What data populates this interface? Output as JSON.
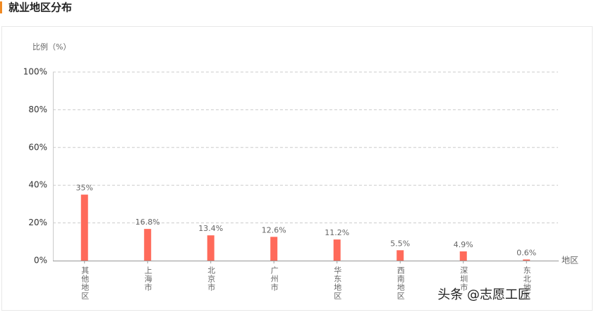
{
  "header": {
    "title": "就业地区分布"
  },
  "chart_data": {
    "type": "bar",
    "y_axis_label": "比例（%）",
    "x_axis_label": "地区",
    "categories": [
      "其他地区",
      "上海市",
      "北京市",
      "广州市",
      "华东地区",
      "西南地区",
      "深圳市",
      "东北地区"
    ],
    "values": [
      35,
      16.8,
      13.4,
      12.6,
      11.2,
      5.5,
      4.9,
      0.6
    ],
    "value_labels": [
      "35%",
      "16.8%",
      "13.4%",
      "12.6%",
      "11.2%",
      "5.5%",
      "4.9%",
      "0.6%"
    ],
    "color": "#ff6a5a",
    "ylim": [
      0,
      100
    ],
    "yticks": [
      {
        "value": 0,
        "label": "0%"
      },
      {
        "value": 20,
        "label": "20%"
      },
      {
        "value": 40,
        "label": "40%"
      },
      {
        "value": 60,
        "label": "60%"
      },
      {
        "value": 80,
        "label": "80%"
      },
      {
        "value": 100,
        "label": "100%"
      }
    ],
    "grid": true
  },
  "watermark": "头条 @志愿工匠"
}
